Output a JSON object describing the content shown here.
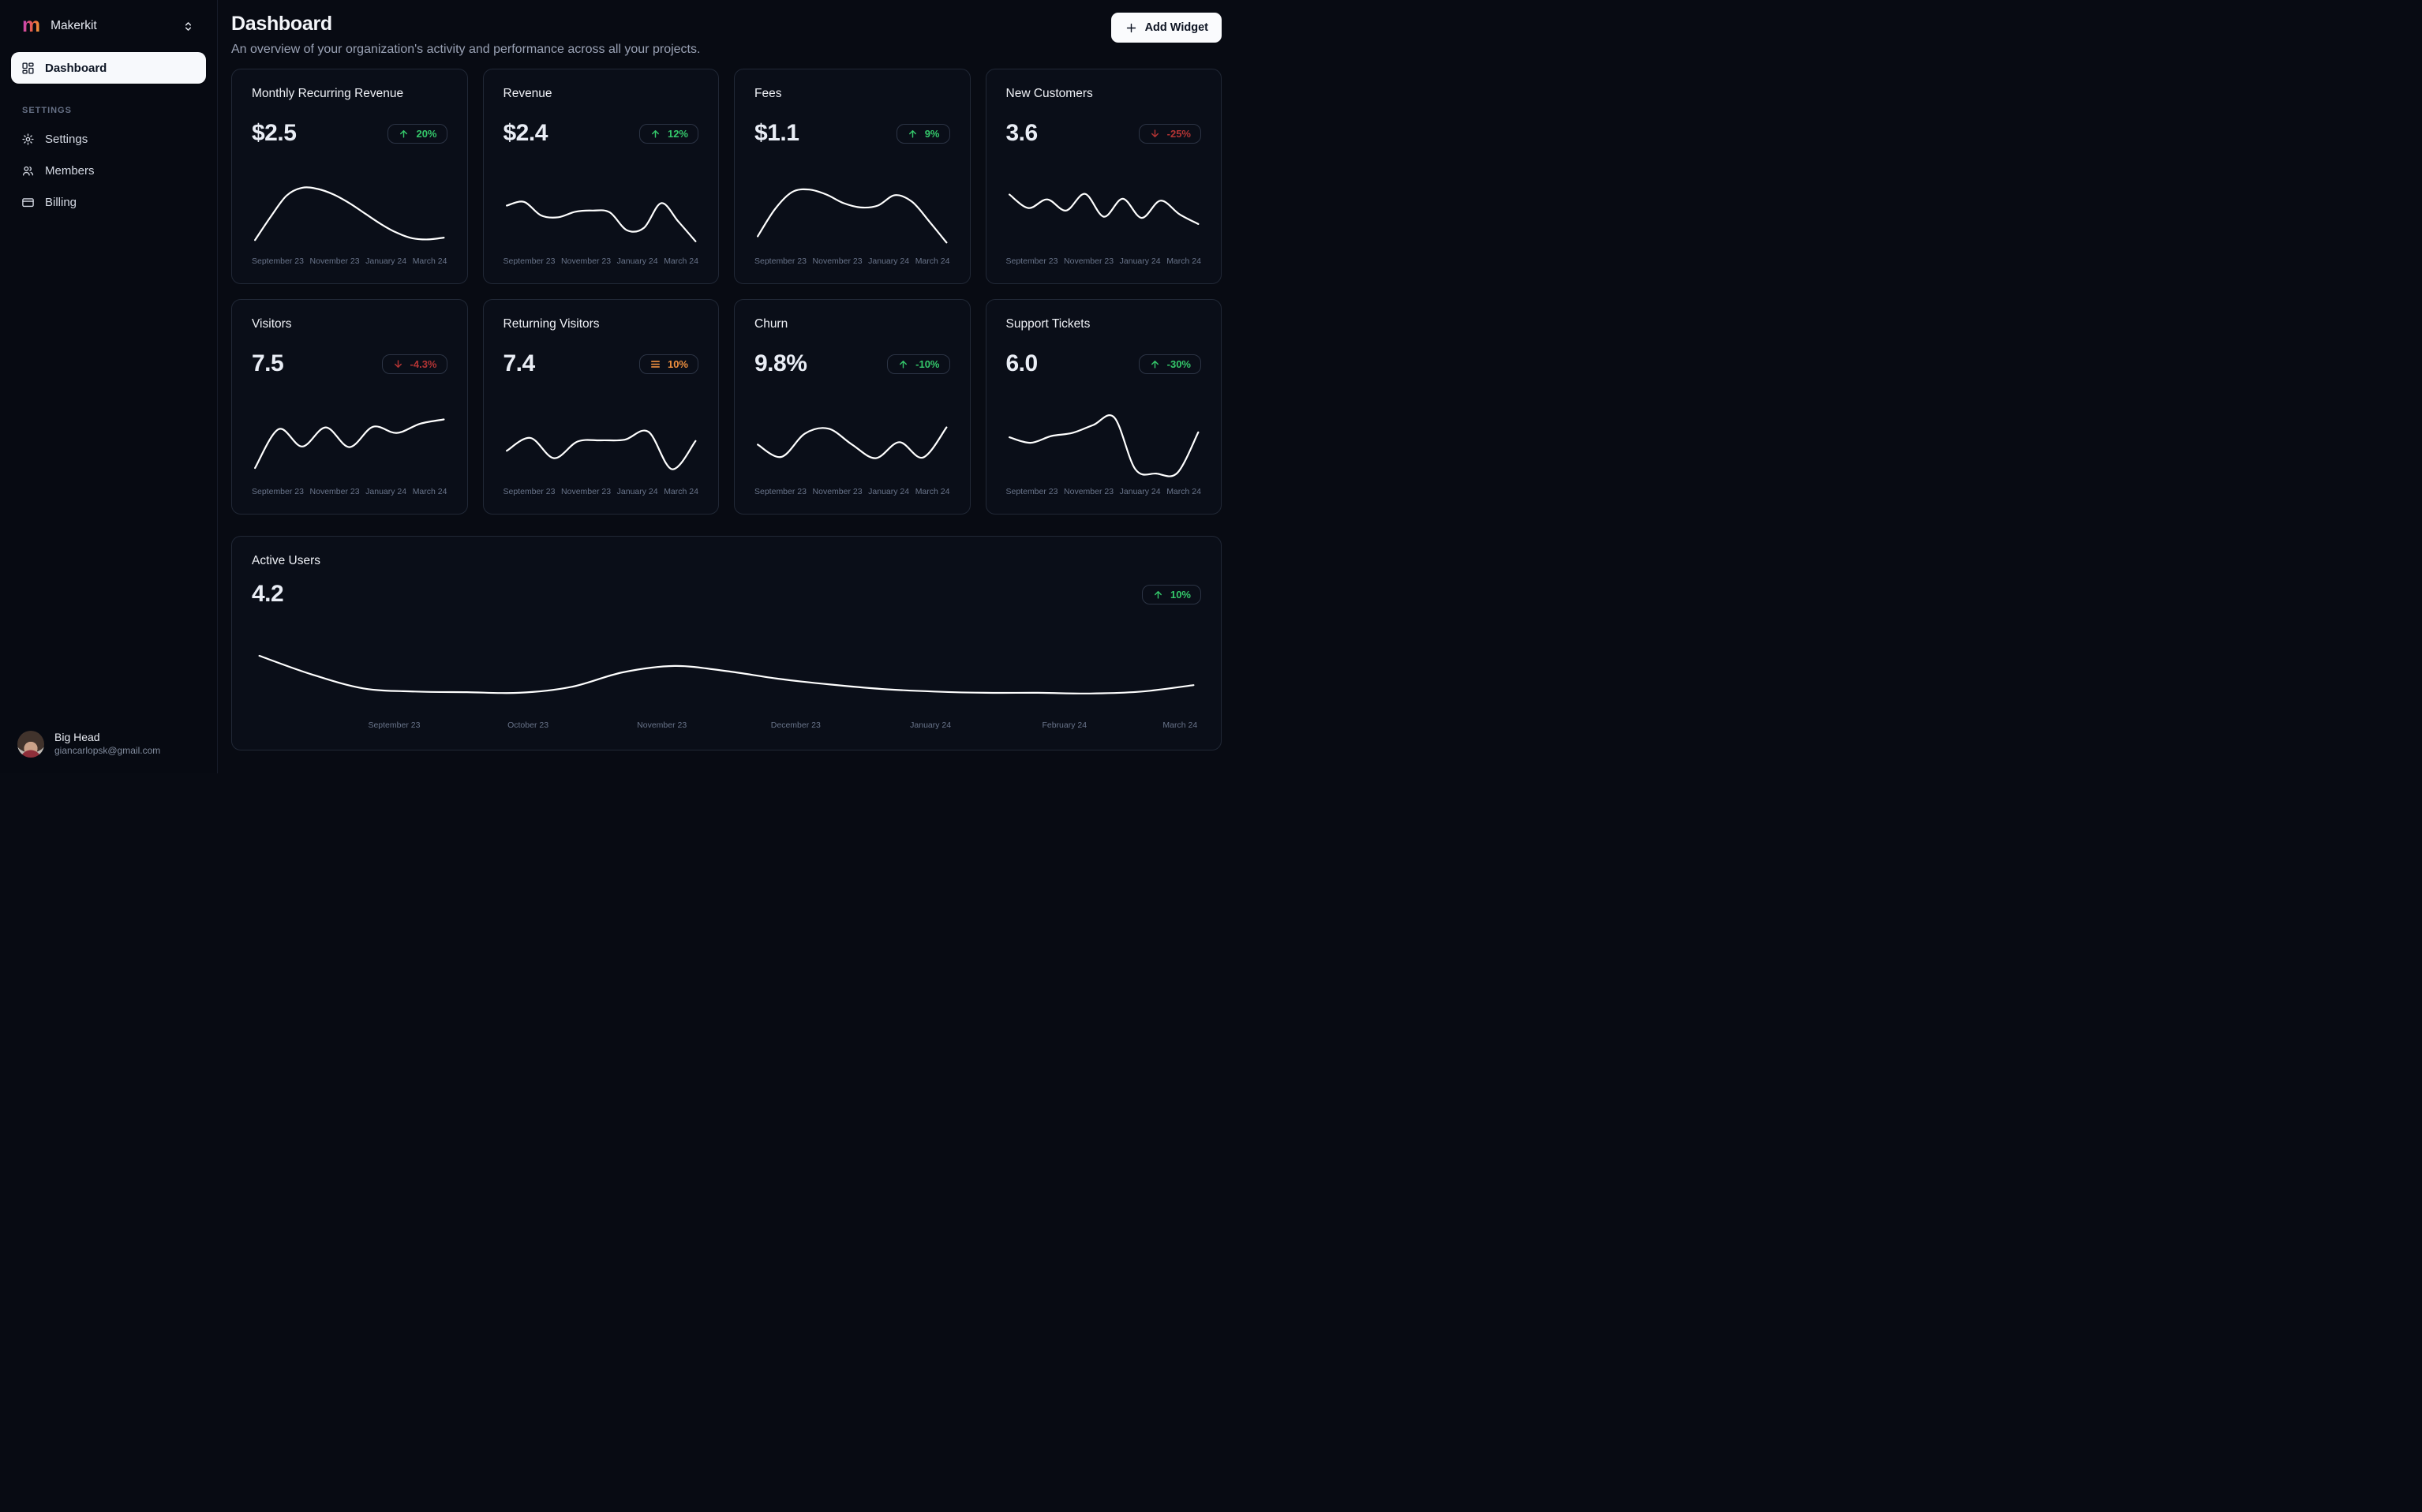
{
  "sidebar": {
    "brand": {
      "logo_letter": "m",
      "name": "Makerkit"
    },
    "nav": {
      "dashboard_label": "Dashboard"
    },
    "settings_heading": "SETTINGS",
    "settings_items": {
      "settings_label": "Settings",
      "members_label": "Members",
      "billing_label": "Billing"
    },
    "user": {
      "name": "Big Head",
      "email": "giancarlopsk@gmail.com"
    }
  },
  "header": {
    "title": "Dashboard",
    "subtitle": "An overview of your organization's activity and performance across all your projects.",
    "add_widget_label": "Add Widget"
  },
  "colors": {
    "positive": "#34c76a",
    "negative": "#b23434",
    "neutral": "#ed8f3f",
    "line": "#ffffff",
    "card_border": "#212836",
    "background": "#080b13"
  },
  "cards": [
    {
      "title": "Monthly Recurring Revenue",
      "value": "$2.5",
      "badge": {
        "icon": "arrow-up",
        "label": "20%",
        "sentiment": "positive"
      }
    },
    {
      "title": "Revenue",
      "value": "$2.4",
      "badge": {
        "icon": "arrow-up",
        "label": "12%",
        "sentiment": "positive"
      }
    },
    {
      "title": "Fees",
      "value": "$1.1",
      "badge": {
        "icon": "arrow-up",
        "label": "9%",
        "sentiment": "positive"
      }
    },
    {
      "title": "New Customers",
      "value": "3.6",
      "badge": {
        "icon": "arrow-down",
        "label": "-25%",
        "sentiment": "negative"
      }
    },
    {
      "title": "Visitors",
      "value": "7.5",
      "badge": {
        "icon": "arrow-down",
        "label": "-4.3%",
        "sentiment": "negative"
      }
    },
    {
      "title": "Returning Visitors",
      "value": "7.4",
      "badge": {
        "icon": "menu",
        "label": "10%",
        "sentiment": "neutral"
      }
    },
    {
      "title": "Churn",
      "value": "9.8%",
      "badge": {
        "icon": "arrow-up",
        "label": "-10%",
        "sentiment": "positive"
      }
    },
    {
      "title": "Support Tickets",
      "value": "6.0",
      "badge": {
        "icon": "arrow-up",
        "label": "-30%",
        "sentiment": "positive"
      }
    }
  ],
  "active_users": {
    "title": "Active Users",
    "value": "4.2",
    "badge": {
      "icon": "arrow-up",
      "label": "10%",
      "sentiment": "positive"
    }
  },
  "chart_data": [
    {
      "type": "line",
      "title": "Monthly Recurring Revenue",
      "x": [
        "September 23",
        "November 23",
        "January 24",
        "March 24"
      ],
      "values_normalized": [
        10,
        48,
        82,
        95,
        93,
        84,
        70,
        53,
        36,
        22,
        13,
        11,
        14
      ],
      "ylim": [
        0,
        100
      ]
    },
    {
      "type": "line",
      "title": "Revenue",
      "x": [
        "September 23",
        "November 23",
        "January 24",
        "March 24"
      ],
      "values_normalized": [
        66,
        72,
        50,
        47,
        56,
        58,
        55,
        26,
        30,
        70,
        40,
        8
      ],
      "ylim": [
        0,
        100
      ]
    },
    {
      "type": "line",
      "title": "Fees",
      "x": [
        "September 23",
        "November 23",
        "January 24",
        "March 24"
      ],
      "values_normalized": [
        16,
        60,
        88,
        92,
        84,
        70,
        63,
        66,
        83,
        72,
        40,
        6
      ],
      "ylim": [
        0,
        100
      ]
    },
    {
      "type": "line",
      "title": "New Customers",
      "x": [
        "September 23",
        "November 23",
        "January 24",
        "March 24"
      ],
      "values_normalized": [
        84,
        62,
        76,
        58,
        85,
        48,
        77,
        46,
        74,
        52,
        36
      ],
      "ylim": [
        0,
        100
      ]
    },
    {
      "type": "line",
      "title": "Visitors",
      "x": [
        "September 23",
        "November 23",
        "January 24",
        "March 24"
      ],
      "values_normalized": [
        14,
        77,
        49,
        80,
        48,
        81,
        71,
        86,
        93
      ],
      "ylim": [
        0,
        100
      ]
    },
    {
      "type": "line",
      "title": "Returning Visitors",
      "x": [
        "September 23",
        "November 23",
        "January 24",
        "March 24"
      ],
      "values_normalized": [
        42,
        63,
        30,
        57,
        59,
        60,
        73,
        12,
        58
      ],
      "ylim": [
        0,
        100
      ]
    },
    {
      "type": "line",
      "title": "Churn",
      "x": [
        "September 23",
        "November 23",
        "January 24",
        "March 24"
      ],
      "values_normalized": [
        52,
        32,
        70,
        78,
        52,
        30,
        56,
        31,
        80
      ],
      "ylim": [
        0,
        100
      ]
    },
    {
      "type": "line",
      "title": "Support Tickets",
      "x": [
        "September 23",
        "November 23",
        "January 24",
        "March 24"
      ],
      "values_normalized": [
        64,
        55,
        66,
        71,
        84,
        96,
        12,
        5,
        6,
        72
      ],
      "ylim": [
        0,
        100
      ]
    },
    {
      "type": "line",
      "title": "Active Users",
      "x": [
        "September 23",
        "October 23",
        "November 23",
        "December 23",
        "January 24",
        "February 24",
        "March 24"
      ],
      "values_normalized": [
        84,
        55,
        33,
        28,
        27,
        26,
        35,
        58,
        68,
        60,
        48,
        39,
        32,
        28,
        26,
        26,
        25,
        28,
        38
      ],
      "ylim": [
        0,
        100
      ]
    }
  ]
}
